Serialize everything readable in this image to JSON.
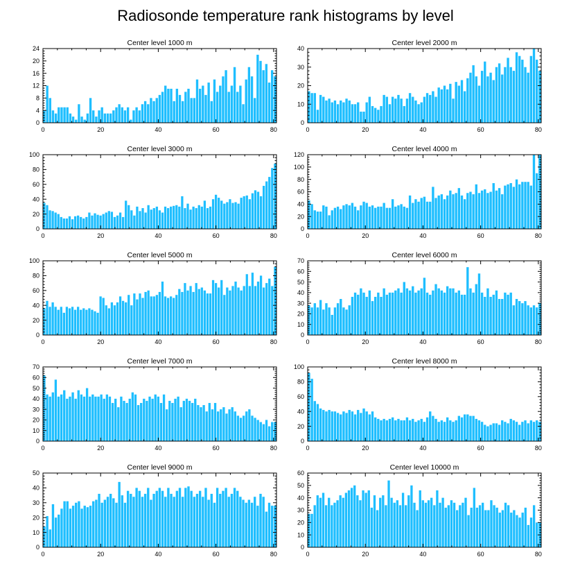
{
  "chart_data": {
    "type": "bar",
    "title": "Radiosonde temperature rank histograms by level",
    "bar_color": "#1ebeff",
    "panels": [
      {
        "title": "Center level 1000 m",
        "xlim": [
          0,
          81
        ],
        "ylim": [
          0,
          24
        ],
        "xticks": [
          0,
          20,
          40,
          60,
          80
        ],
        "yticks": [
          0,
          4,
          8,
          12,
          16,
          20,
          24
        ],
        "values": [
          4,
          12,
          8,
          4,
          3,
          5,
          5,
          5,
          5,
          3,
          2,
          1,
          6,
          2,
          1,
          3,
          8,
          4,
          2,
          4,
          5,
          3,
          3,
          3,
          4,
          5,
          6,
          5,
          4,
          5,
          1,
          4,
          5,
          4,
          6,
          7,
          6,
          8,
          7,
          8,
          9,
          10,
          12,
          11,
          11,
          7,
          11,
          9,
          7,
          10,
          11,
          8,
          8,
          14,
          11,
          12,
          9,
          13,
          7,
          14,
          10,
          12,
          15,
          17,
          10,
          12,
          18,
          10,
          12,
          6,
          14,
          18,
          15,
          8,
          22,
          20,
          17,
          19,
          13,
          17,
          15
        ]
      },
      {
        "title": "Center level 2000 m",
        "xlim": [
          0,
          81
        ],
        "ylim": [
          0,
          40
        ],
        "xticks": [
          0,
          20,
          40,
          60,
          80
        ],
        "yticks": [
          0,
          10,
          20,
          30,
          40
        ],
        "values": [
          17,
          16,
          16,
          7,
          15,
          14,
          12,
          13,
          11,
          12,
          10,
          12,
          11,
          13,
          12,
          10,
          10,
          11,
          6,
          6,
          11,
          14,
          9,
          8,
          7,
          9,
          15,
          14,
          10,
          14,
          13,
          15,
          13,
          9,
          13,
          16,
          14,
          12,
          10,
          11,
          14,
          16,
          15,
          17,
          14,
          19,
          18,
          20,
          18,
          21,
          13,
          22,
          20,
          23,
          17,
          24,
          27,
          31,
          25,
          20,
          28,
          33,
          25,
          27,
          23,
          30,
          32,
          26,
          30,
          35,
          30,
          28,
          38,
          36,
          34,
          30,
          27,
          36,
          40,
          34,
          28
        ]
      },
      {
        "title": "Center level 3000 m",
        "xlim": [
          0,
          81
        ],
        "ylim": [
          0,
          100
        ],
        "xticks": [
          0,
          20,
          40,
          60,
          80
        ],
        "yticks": [
          0,
          20,
          40,
          60,
          80,
          100
        ],
        "values": [
          35,
          32,
          25,
          24,
          22,
          20,
          16,
          14,
          14,
          17,
          13,
          17,
          18,
          16,
          14,
          16,
          22,
          18,
          21,
          19,
          18,
          20,
          22,
          24,
          23,
          16,
          18,
          22,
          16,
          38,
          32,
          25,
          18,
          30,
          24,
          28,
          22,
          32,
          26,
          28,
          30,
          25,
          22,
          30,
          28,
          30,
          31,
          32,
          30,
          44,
          28,
          34,
          26,
          30,
          28,
          32,
          30,
          38,
          28,
          30,
          40,
          46,
          42,
          38,
          34,
          36,
          40,
          35,
          36,
          34,
          42,
          44,
          45,
          40,
          48,
          52,
          50,
          44,
          58,
          64,
          70,
          82,
          88
        ]
      },
      {
        "title": "Center level 4000 m",
        "xlim": [
          0,
          81
        ],
        "ylim": [
          0,
          120
        ],
        "xticks": [
          0,
          20,
          40,
          60,
          80
        ],
        "yticks": [
          0,
          20,
          40,
          60,
          80,
          100,
          120
        ],
        "values": [
          46,
          40,
          30,
          28,
          28,
          38,
          36,
          22,
          30,
          34,
          36,
          32,
          38,
          40,
          38,
          42,
          36,
          30,
          38,
          44,
          42,
          36,
          38,
          34,
          36,
          36,
          42,
          34,
          34,
          48,
          36,
          38,
          40,
          36,
          34,
          54,
          42,
          48,
          44,
          50,
          52,
          44,
          44,
          68,
          50,
          54,
          56,
          48,
          54,
          62,
          56,
          58,
          66,
          54,
          48,
          58,
          60,
          56,
          72,
          58,
          62,
          64,
          58,
          60,
          74,
          62,
          66,
          56,
          70,
          72,
          74,
          68,
          80,
          72,
          76,
          76,
          76,
          70,
          120,
          90,
          120
        ]
      },
      {
        "title": "Center level 5000 m",
        "xlim": [
          0,
          81
        ],
        "ylim": [
          0,
          100
        ],
        "xticks": [
          0,
          20,
          40,
          60,
          80
        ],
        "yticks": [
          0,
          20,
          40,
          60,
          80,
          100
        ],
        "values": [
          36,
          46,
          38,
          44,
          38,
          34,
          38,
          30,
          38,
          36,
          38,
          34,
          38,
          34,
          36,
          34,
          36,
          34,
          32,
          30,
          52,
          50,
          40,
          36,
          44,
          40,
          44,
          52,
          46,
          44,
          54,
          40,
          56,
          48,
          56,
          50,
          58,
          60,
          52,
          52,
          54,
          58,
          72,
          52,
          50,
          52,
          50,
          54,
          62,
          58,
          70,
          60,
          66,
          58,
          70,
          62,
          64,
          60,
          56,
          56,
          74,
          70,
          64,
          74,
          54,
          64,
          60,
          66,
          72,
          64,
          60,
          66,
          82,
          66,
          84,
          66,
          72,
          80,
          64,
          70,
          76,
          66,
          92
        ]
      },
      {
        "title": "Center level 6000 m",
        "xlim": [
          0,
          81
        ],
        "ylim": [
          0,
          70
        ],
        "xticks": [
          0,
          20,
          40,
          60,
          80
        ],
        "yticks": [
          0,
          10,
          20,
          30,
          40,
          50,
          60,
          70
        ],
        "values": [
          28,
          26,
          30,
          26,
          33,
          24,
          30,
          26,
          19,
          26,
          30,
          34,
          26,
          24,
          28,
          36,
          40,
          38,
          44,
          40,
          36,
          42,
          32,
          36,
          40,
          36,
          44,
          38,
          40,
          40,
          42,
          44,
          40,
          50,
          44,
          42,
          46,
          40,
          42,
          44,
          54,
          40,
          38,
          42,
          48,
          44,
          42,
          40,
          46,
          44,
          44,
          40,
          42,
          38,
          38,
          64,
          44,
          40,
          48,
          58,
          40,
          36,
          44,
          36,
          38,
          42,
          34,
          34,
          40,
          38,
          40,
          28,
          34,
          32,
          30,
          32,
          28,
          26,
          28,
          26,
          30
        ]
      },
      {
        "title": "Center level 7000 m",
        "xlim": [
          0,
          81
        ],
        "ylim": [
          0,
          70
        ],
        "xticks": [
          0,
          20,
          40,
          60,
          80
        ],
        "yticks": [
          0,
          10,
          20,
          30,
          40,
          50,
          60,
          70
        ],
        "values": [
          62,
          44,
          42,
          46,
          58,
          42,
          44,
          48,
          40,
          42,
          46,
          40,
          48,
          44,
          42,
          50,
          42,
          44,
          42,
          42,
          44,
          40,
          44,
          42,
          36,
          40,
          32,
          42,
          38,
          36,
          40,
          46,
          44,
          34,
          36,
          40,
          38,
          42,
          40,
          44,
          42,
          36,
          44,
          30,
          38,
          36,
          40,
          42,
          32,
          38,
          40,
          38,
          36,
          40,
          34,
          32,
          34,
          28,
          36,
          30,
          36,
          28,
          30,
          32,
          26,
          30,
          32,
          28,
          24,
          22,
          24,
          28,
          30,
          24,
          22,
          20,
          18,
          16,
          20,
          14,
          18,
          18
        ]
      },
      {
        "title": "Center level 8000 m",
        "xlim": [
          0,
          81
        ],
        "ylim": [
          0,
          100
        ],
        "xticks": [
          0,
          20,
          40,
          60,
          80
        ],
        "yticks": [
          0,
          20,
          40,
          60,
          80,
          100
        ],
        "values": [
          92,
          84,
          54,
          50,
          44,
          42,
          40,
          42,
          40,
          40,
          38,
          36,
          40,
          38,
          42,
          40,
          36,
          42,
          38,
          44,
          40,
          36,
          40,
          32,
          30,
          28,
          30,
          28,
          30,
          32,
          28,
          30,
          28,
          28,
          32,
          28,
          30,
          26,
          28,
          30,
          26,
          32,
          40,
          34,
          30,
          26,
          28,
          26,
          32,
          28,
          26,
          28,
          34,
          32,
          36,
          36,
          34,
          34,
          30,
          28,
          26,
          22,
          20,
          22,
          24,
          24,
          22,
          28,
          26,
          24,
          30,
          28,
          26,
          22,
          26,
          28,
          24,
          28,
          26,
          28,
          26
        ]
      },
      {
        "title": "Center level 9000 m",
        "xlim": [
          0,
          81
        ],
        "ylim": [
          0,
          50
        ],
        "xticks": [
          0,
          20,
          40,
          60,
          80
        ],
        "yticks": [
          0,
          10,
          20,
          30,
          40,
          50
        ],
        "values": [
          14,
          21,
          12,
          29,
          20,
          22,
          26,
          31,
          31,
          26,
          28,
          30,
          31,
          26,
          28,
          27,
          28,
          31,
          32,
          36,
          30,
          32,
          34,
          36,
          33,
          30,
          44,
          35,
          30,
          38,
          36,
          34,
          40,
          38,
          34,
          36,
          40,
          32,
          36,
          38,
          40,
          38,
          34,
          40,
          36,
          34,
          38,
          40,
          34,
          40,
          41,
          38,
          34,
          36,
          38,
          34,
          40,
          32,
          36,
          30,
          40,
          36,
          38,
          40,
          34,
          36,
          40,
          38,
          34,
          32,
          30,
          32,
          30,
          34,
          28,
          36,
          34,
          24,
          30,
          28,
          28
        ]
      },
      {
        "title": "Center level 10000 m",
        "xlim": [
          0,
          81
        ],
        "ylim": [
          0,
          60
        ],
        "xticks": [
          0,
          20,
          40,
          60,
          80
        ],
        "yticks": [
          0,
          10,
          20,
          30,
          40,
          50,
          60
        ],
        "values": [
          27,
          27,
          34,
          42,
          40,
          44,
          34,
          40,
          34,
          36,
          38,
          42,
          40,
          44,
          46,
          48,
          50,
          42,
          38,
          46,
          44,
          46,
          32,
          42,
          30,
          40,
          42,
          34,
          54,
          40,
          36,
          38,
          34,
          44,
          34,
          42,
          50,
          36,
          30,
          46,
          38,
          36,
          38,
          40,
          34,
          46,
          36,
          40,
          32,
          34,
          38,
          36,
          30,
          34,
          36,
          40,
          26,
          32,
          48,
          32,
          34,
          36,
          30,
          30,
          38,
          34,
          32,
          28,
          30,
          36,
          34,
          28,
          30,
          26,
          24,
          28,
          32,
          18,
          24,
          34,
          20,
          20
        ]
      }
    ]
  }
}
